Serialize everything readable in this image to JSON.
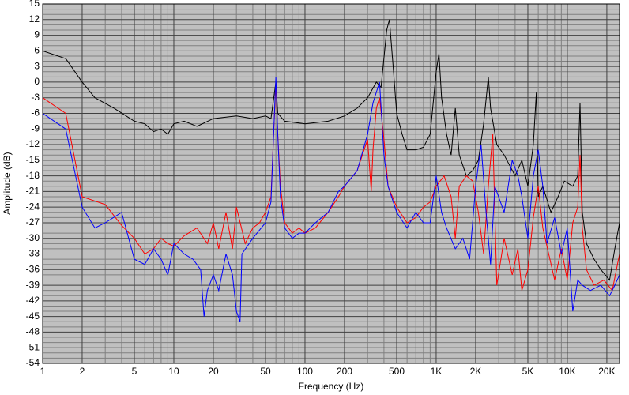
{
  "chart_data": {
    "type": "line",
    "log_x": true,
    "grid": true,
    "x_label": "Frequency (Hz)",
    "y_label": "Amplitude (dB)",
    "xlim": [
      1,
      25000
    ],
    "ylim": [
      -54,
      15
    ],
    "xticks": [
      1,
      2,
      5,
      10,
      20,
      50,
      100,
      200,
      500,
      {
        "value": 1000,
        "label": "1K"
      },
      {
        "value": 2000,
        "label": "2K"
      },
      {
        "value": 5000,
        "label": "5K"
      },
      {
        "value": 10000,
        "label": "10K"
      },
      {
        "value": 20000,
        "label": "20K"
      }
    ],
    "x_minor_ticks": [
      3,
      4,
      6,
      7,
      8,
      9,
      30,
      40,
      60,
      70,
      80,
      90,
      300,
      400,
      600,
      700,
      800,
      900,
      3000,
      4000,
      6000,
      7000,
      8000,
      9000
    ],
    "yticks": [
      15,
      12,
      9,
      6,
      3,
      0,
      -3,
      -6,
      -9,
      -12,
      -15,
      -18,
      -21,
      -24,
      -27,
      -30,
      -33,
      -36,
      -39,
      -42,
      -45,
      -48,
      -51,
      -54
    ],
    "y_minor_ticks": [
      -53,
      -52,
      -50,
      -49,
      -47,
      -46,
      -44,
      -43,
      -41,
      -40,
      -38,
      -37,
      -35,
      -34,
      -32,
      -31,
      -29,
      -28,
      -26,
      -25,
      -23,
      -22,
      -20,
      -19,
      -17,
      -16,
      -14,
      -13,
      -11,
      -10,
      -8,
      -7,
      -5,
      -4,
      -2,
      -1,
      1,
      2,
      4,
      5,
      7,
      8,
      10,
      11,
      13,
      14
    ],
    "series": [
      {
        "color": "#000000",
        "x": [
          1,
          1.5,
          2,
          2.5,
          3.5,
          5,
          6,
          7,
          8,
          9,
          10,
          12,
          15,
          20,
          30,
          40,
          50,
          55,
          60,
          62,
          70,
          100,
          150,
          200,
          250,
          300,
          350,
          380,
          420,
          440,
          470,
          500,
          550,
          600,
          700,
          800,
          900,
          1000,
          1050,
          1100,
          1200,
          1300,
          1400,
          1500,
          1700,
          1900,
          2100,
          2300,
          2500,
          2600,
          2900,
          3300,
          4000,
          4500,
          5000,
          5500,
          5800,
          6000,
          6500,
          7500,
          8500,
          9500,
          11000,
          12000,
          12500,
          13000,
          14000,
          16000,
          18000,
          21000,
          23000,
          25000
        ],
        "values": [
          6,
          4.5,
          0,
          -3,
          -5,
          -7.5,
          -8,
          -9.5,
          -9,
          -10,
          -8,
          -7.5,
          -8.5,
          -7,
          -6.5,
          -7,
          -6.5,
          -7,
          0,
          -6,
          -7.5,
          -8,
          -7.5,
          -6.5,
          -5,
          -3,
          0,
          -1,
          10,
          12,
          3,
          -6,
          -10,
          -13,
          -13,
          -12.5,
          -10,
          2,
          5.5,
          -3,
          -10,
          -14,
          -5,
          -14,
          -18,
          -17,
          -15,
          -8,
          1,
          -5,
          -12,
          -14,
          -18,
          -15,
          -20,
          -12,
          -2,
          -22,
          -20,
          -25,
          -22,
          -19,
          -20,
          -18,
          -4,
          -25,
          -31,
          -34,
          -36,
          -38,
          -32,
          -27
        ]
      },
      {
        "color": "#ff0000",
        "x": [
          1,
          1.5,
          2,
          3,
          4,
          5,
          6,
          7,
          8,
          9,
          10,
          12,
          15,
          18,
          20,
          22,
          25,
          28,
          30,
          35,
          40,
          45,
          50,
          55,
          60,
          62,
          65,
          70,
          80,
          90,
          100,
          120,
          150,
          180,
          200,
          250,
          300,
          320,
          330,
          350,
          370,
          400,
          430,
          500,
          600,
          700,
          800,
          900,
          1000,
          1150,
          1300,
          1400,
          1500,
          1700,
          1900,
          2100,
          2300,
          2500,
          2700,
          2900,
          3300,
          3800,
          4200,
          4500,
          5000,
          5500,
          6000,
          6500,
          8000,
          9000,
          10000,
          11000,
          12000,
          12500,
          13000,
          14000,
          16000,
          19000,
          22000,
          25000
        ],
        "values": [
          -3,
          -6,
          -22,
          -23.5,
          -27.5,
          -30,
          -33,
          -32,
          -30,
          -31,
          -31.5,
          -29.5,
          -28,
          -31,
          -27,
          -32,
          -25,
          -32,
          -24,
          -31,
          -28,
          -27,
          -25,
          -22,
          0,
          -10,
          -20,
          -27,
          -29,
          -28,
          -29,
          -28,
          -25,
          -22,
          -20,
          -17,
          -11,
          -21,
          -13,
          -5,
          -3,
          -11,
          -20,
          -24,
          -27,
          -26,
          -24,
          -23,
          -20,
          -18,
          -22,
          -30,
          -20,
          -18,
          -19,
          -25,
          -33,
          -20,
          -10,
          -39,
          -30,
          -37,
          -32,
          -40,
          -36,
          -26,
          -20,
          -28,
          -38,
          -32,
          -38,
          -27,
          -24,
          -14,
          -28,
          -36,
          -39,
          -38,
          -40,
          -33
        ]
      },
      {
        "color": "#0000ff",
        "x": [
          1,
          1.5,
          2,
          2.5,
          3,
          4,
          5,
          6,
          7,
          8,
          9,
          10,
          12,
          14,
          16,
          17,
          18,
          20,
          22,
          25,
          28,
          30,
          32,
          33,
          40,
          50,
          55,
          60,
          62,
          65,
          70,
          80,
          90,
          100,
          120,
          150,
          180,
          200,
          250,
          300,
          330,
          370,
          400,
          430,
          500,
          600,
          700,
          800,
          900,
          1000,
          1100,
          1200,
          1400,
          1600,
          1800,
          2000,
          2200,
          2400,
          2600,
          2800,
          3300,
          3800,
          4200,
          4500,
          5000,
          5500,
          6000,
          6500,
          7000,
          8000,
          9000,
          10000,
          11000,
          12000,
          13000,
          15000,
          18000,
          21000,
          23000,
          25000
        ],
        "values": [
          -6,
          -9,
          -24,
          -28,
          -27,
          -25,
          -34,
          -35,
          -32,
          -34,
          -37,
          -31,
          -33,
          -34,
          -36,
          -45,
          -40,
          -37,
          -40,
          -33,
          -37,
          -44,
          -46,
          -33,
          -30,
          -27,
          -23,
          1,
          -10,
          -22,
          -28,
          -30,
          -29,
          -29,
          -27,
          -25,
          -21,
          -20,
          -17,
          -10,
          -4,
          0,
          -14,
          -20,
          -25,
          -28,
          -25,
          -27,
          -27,
          -18,
          -25,
          -28,
          -32,
          -30,
          -34,
          -20,
          -12,
          -25,
          -35,
          -20,
          -25,
          -15,
          -18,
          -22,
          -30,
          -18,
          -13,
          -20,
          -31,
          -26,
          -33,
          -28,
          -44,
          -38,
          -39,
          -40,
          -39,
          -41,
          -39,
          -37
        ]
      }
    ]
  }
}
